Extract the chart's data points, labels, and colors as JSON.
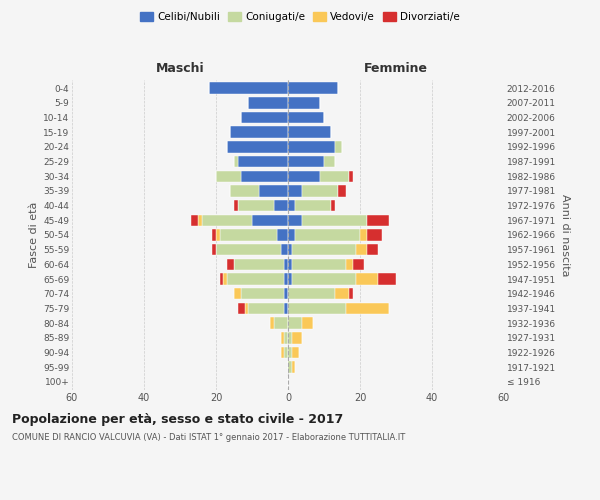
{
  "age_groups": [
    "100+",
    "95-99",
    "90-94",
    "85-89",
    "80-84",
    "75-79",
    "70-74",
    "65-69",
    "60-64",
    "55-59",
    "50-54",
    "45-49",
    "40-44",
    "35-39",
    "30-34",
    "25-29",
    "20-24",
    "15-19",
    "10-14",
    "5-9",
    "0-4"
  ],
  "birth_years": [
    "≤ 1916",
    "1917-1921",
    "1922-1926",
    "1927-1931",
    "1932-1936",
    "1937-1941",
    "1942-1946",
    "1947-1951",
    "1952-1956",
    "1957-1961",
    "1962-1966",
    "1967-1971",
    "1972-1976",
    "1977-1981",
    "1982-1986",
    "1987-1991",
    "1992-1996",
    "1997-2001",
    "2002-2006",
    "2007-2011",
    "2012-2016"
  ],
  "males": {
    "celibi": [
      0,
      0,
      0,
      0,
      0,
      1,
      1,
      1,
      1,
      2,
      3,
      10,
      4,
      8,
      13,
      14,
      17,
      16,
      13,
      11,
      22
    ],
    "coniugati": [
      0,
      0,
      1,
      1,
      4,
      10,
      12,
      16,
      14,
      18,
      16,
      14,
      10,
      8,
      7,
      1,
      0,
      0,
      0,
      0,
      0
    ],
    "vedovi": [
      0,
      0,
      1,
      1,
      1,
      1,
      2,
      1,
      0,
      0,
      1,
      1,
      0,
      0,
      0,
      0,
      0,
      0,
      0,
      0,
      0
    ],
    "divorziati": [
      0,
      0,
      0,
      0,
      0,
      2,
      0,
      1,
      2,
      1,
      1,
      2,
      1,
      0,
      0,
      0,
      0,
      0,
      0,
      0,
      0
    ]
  },
  "females": {
    "nubili": [
      0,
      0,
      0,
      0,
      0,
      0,
      0,
      1,
      1,
      1,
      2,
      4,
      2,
      4,
      9,
      10,
      13,
      12,
      10,
      9,
      14
    ],
    "coniugate": [
      0,
      1,
      1,
      1,
      4,
      16,
      13,
      18,
      15,
      18,
      18,
      18,
      10,
      10,
      8,
      3,
      2,
      0,
      0,
      0,
      0
    ],
    "vedove": [
      0,
      1,
      2,
      3,
      3,
      12,
      4,
      6,
      2,
      3,
      2,
      0,
      0,
      0,
      0,
      0,
      0,
      0,
      0,
      0,
      0
    ],
    "divorziate": [
      0,
      0,
      0,
      0,
      0,
      0,
      1,
      5,
      3,
      3,
      4,
      6,
      1,
      2,
      1,
      0,
      0,
      0,
      0,
      0,
      0
    ]
  },
  "colors": {
    "celibi": "#4472c4",
    "coniugati": "#c5d9a0",
    "vedovi": "#fac858",
    "divorziati": "#d62f2f"
  },
  "xlim": 60,
  "title": "Popolazione per età, sesso e stato civile - 2017",
  "subtitle": "COMUNE DI RANCIO VALCUVIA (VA) - Dati ISTAT 1° gennaio 2017 - Elaborazione TUTTITALIA.IT",
  "ylabel_left": "Fasce di età",
  "ylabel_right": "Anni di nascita",
  "legend_labels": [
    "Celibi/Nubili",
    "Coniugati/e",
    "Vedovi/e",
    "Divorziati/e"
  ],
  "maschi_label": "Maschi",
  "femmine_label": "Femmine",
  "bg_color": "#f5f5f5",
  "grid_color": "#cccccc"
}
